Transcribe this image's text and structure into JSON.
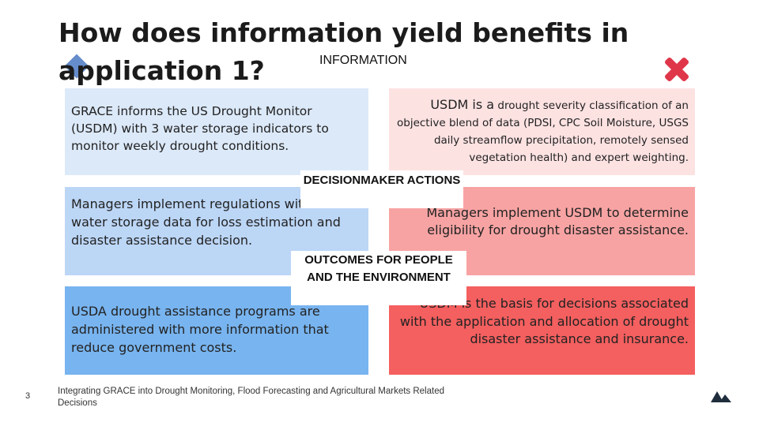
{
  "title": "How does information yield benefits in application 1?",
  "labels": {
    "information": "INFORMATION",
    "decisionmaker": "DECISIONMAKER ACTIONS",
    "outcomes": "OUTCOMES FOR PEOPLE AND THE ENVIRONMENT"
  },
  "left": {
    "information": "GRACE informs the US Drought Monitor (USDM) with 3 water storage indicators to monitor weekly drought conditions.",
    "actions": "Managers implement regulations with total water storage data for loss estimation and disaster assistance decision.",
    "outcomes": "USDA drought assistance programs are administered with more information that reduce government costs."
  },
  "right": {
    "information_lead": "USDM is a",
    "information_rest": " drought severity classification of an objective blend of data (PDSI, CPC Soil Moisture, USGS daily streamflow precipitation, remotely sensed vegetation health) and expert weighting.",
    "actions": "Managers implement USDM to determine eligibility for drought disaster assistance.",
    "outcomes": "USDM is the basis for decisions associated with the application and allocation of drought disaster assistance and insurance."
  },
  "footer": {
    "slide_number": "3",
    "text": "Integrating GRACE into Drought Monitoring, Flood Forecasting and Agricultural Markets Related Decisions"
  },
  "icons": {
    "diamond": "diamond-icon",
    "close": "x-mark-icon",
    "logo": "mountain-logo-icon"
  },
  "colors": {
    "left_light": "#dce9f9",
    "left_mid": "#bcd6f6",
    "left_dark": "#78b4ef",
    "right_light": "#fde2e2",
    "right_mid": "#f8a3a3",
    "right_dark": "#f45f5f",
    "x_mark": "#e0364a"
  }
}
